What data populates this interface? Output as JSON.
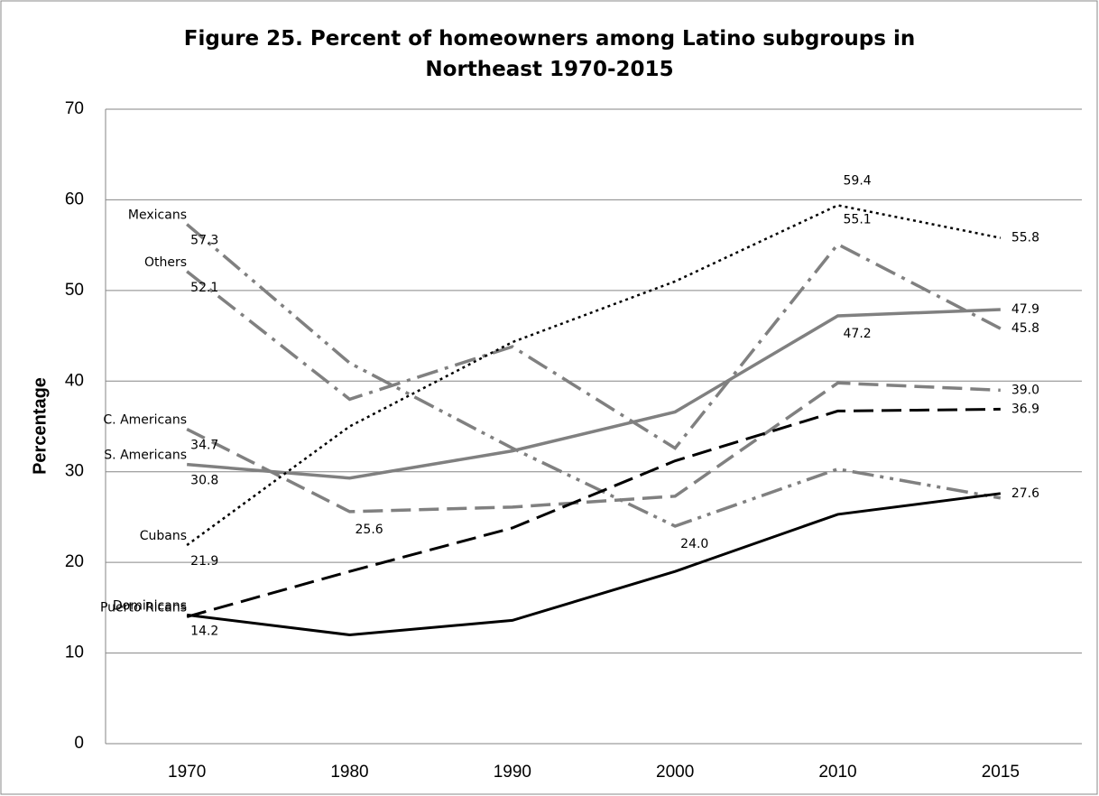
{
  "chart_data": {
    "type": "line",
    "title": "Figure 25. Percent of homeowners among Latino subgroups in Northeast 1970-2015",
    "y_label": "Percentage",
    "categories": [
      "1970",
      "1980",
      "1990",
      "2000",
      "2010",
      "2015"
    ],
    "ylim": [
      0,
      70
    ],
    "yticks": [
      0,
      10,
      20,
      30,
      40,
      50,
      60,
      70
    ],
    "grid": true,
    "series": [
      {
        "name": "Mexicans",
        "color": "#808080",
        "line_style": "dash-dot-dot",
        "values": [
          57.3,
          42.0,
          32.6,
          24.0,
          30.3,
          27.1
        ],
        "value_labels": [
          "57.3",
          null,
          null,
          "24.0",
          null,
          null
        ]
      },
      {
        "name": "Others",
        "color": "#808080",
        "line_style": "dash-dot",
        "values": [
          52.1,
          38.0,
          43.8,
          32.6,
          55.1,
          45.8
        ],
        "value_labels": [
          "52.1",
          null,
          null,
          null,
          "55.1",
          "45.8"
        ]
      },
      {
        "name": "C. Americans",
        "color": "#808080",
        "line_style": "dashed",
        "values": [
          34.7,
          25.6,
          26.1,
          27.3,
          39.8,
          39.0
        ],
        "value_labels": [
          "34.7",
          "25.6",
          null,
          null,
          null,
          "39.0"
        ]
      },
      {
        "name": "S. Americans",
        "color": "#808080",
        "line_style": "solid",
        "values": [
          30.8,
          29.3,
          32.3,
          36.6,
          47.2,
          47.9
        ],
        "value_labels": [
          "30.8",
          null,
          null,
          null,
          "47.2",
          "47.9"
        ]
      },
      {
        "name": "Cubans",
        "color": "#000000",
        "line_style": "dotted",
        "values": [
          21.9,
          35.0,
          44.3,
          51.0,
          59.4,
          55.8
        ],
        "value_labels": [
          "21.9",
          null,
          null,
          null,
          "59.4",
          "55.8"
        ]
      },
      {
        "name": "Puerto Ricans",
        "color": "#000000",
        "line_style": "dashed",
        "values": [
          14.0,
          19.0,
          23.8,
          31.2,
          36.7,
          36.9
        ],
        "value_labels": [
          null,
          null,
          null,
          null,
          null,
          "36.9"
        ]
      },
      {
        "name": "Dominicans",
        "color": "#000000",
        "line_style": "solid",
        "values": [
          14.2,
          12.0,
          13.6,
          19.0,
          25.3,
          27.6
        ],
        "value_labels": [
          "14.2",
          null,
          null,
          null,
          null,
          "27.6"
        ]
      }
    ]
  }
}
